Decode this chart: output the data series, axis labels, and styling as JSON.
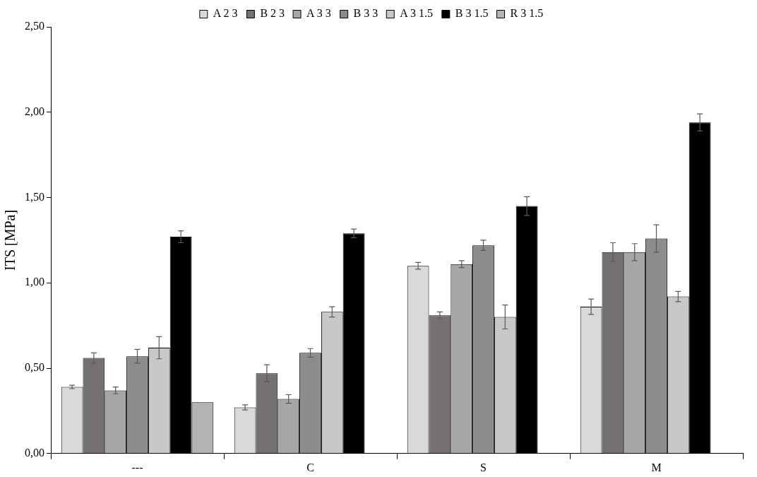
{
  "chart_data": {
    "type": "bar",
    "ylabel": "ITS [MPa]",
    "categories": [
      "---",
      "C",
      "S",
      "M"
    ],
    "series": [
      {
        "name": "A 2 3",
        "color": "#d9d9d9",
        "values": [
          0.39,
          0.27,
          1.1,
          0.86
        ],
        "errors": [
          0.01,
          0.015,
          0.02,
          0.045
        ]
      },
      {
        "name": "B 2 3",
        "color": "#767171",
        "values": [
          0.56,
          0.47,
          0.81,
          1.18
        ],
        "errors": [
          0.03,
          0.05,
          0.02,
          0.055
        ]
      },
      {
        "name": "A 3 3",
        "color": "#a6a6a6",
        "values": [
          0.37,
          0.32,
          1.11,
          1.18
        ],
        "errors": [
          0.02,
          0.025,
          0.02,
          0.05
        ]
      },
      {
        "name": "B 3 3",
        "color": "#8c8c8c",
        "values": [
          0.57,
          0.59,
          1.22,
          1.26
        ],
        "errors": [
          0.04,
          0.025,
          0.03,
          0.08
        ]
      },
      {
        "name": "A 3 1.5",
        "color": "#c8c8c8",
        "values": [
          0.62,
          0.83,
          0.8,
          0.92
        ],
        "errors": [
          0.065,
          0.03,
          0.07,
          0.03
        ]
      },
      {
        "name": "B 3 1.5",
        "color": "#000000",
        "values": [
          1.27,
          1.29,
          1.45,
          1.94
        ],
        "errors": [
          0.035,
          0.025,
          0.055,
          0.05
        ]
      },
      {
        "name": "R 3 1.5",
        "color": "#b3b3b3",
        "values": [
          0.3,
          null,
          null,
          null
        ],
        "errors": [
          null,
          null,
          null,
          null
        ]
      }
    ],
    "ylim": [
      0,
      2.5
    ],
    "yticks": [
      {
        "value": 0,
        "label": "0,00"
      },
      {
        "value": 0.5,
        "label": "0,50"
      },
      {
        "value": 1,
        "label": "1,00"
      },
      {
        "value": 1.5,
        "label": "1,50"
      },
      {
        "value": 2,
        "label": "2,00"
      },
      {
        "value": 2.5,
        "label": "2,50"
      }
    ],
    "grid": false,
    "legend": "top"
  }
}
